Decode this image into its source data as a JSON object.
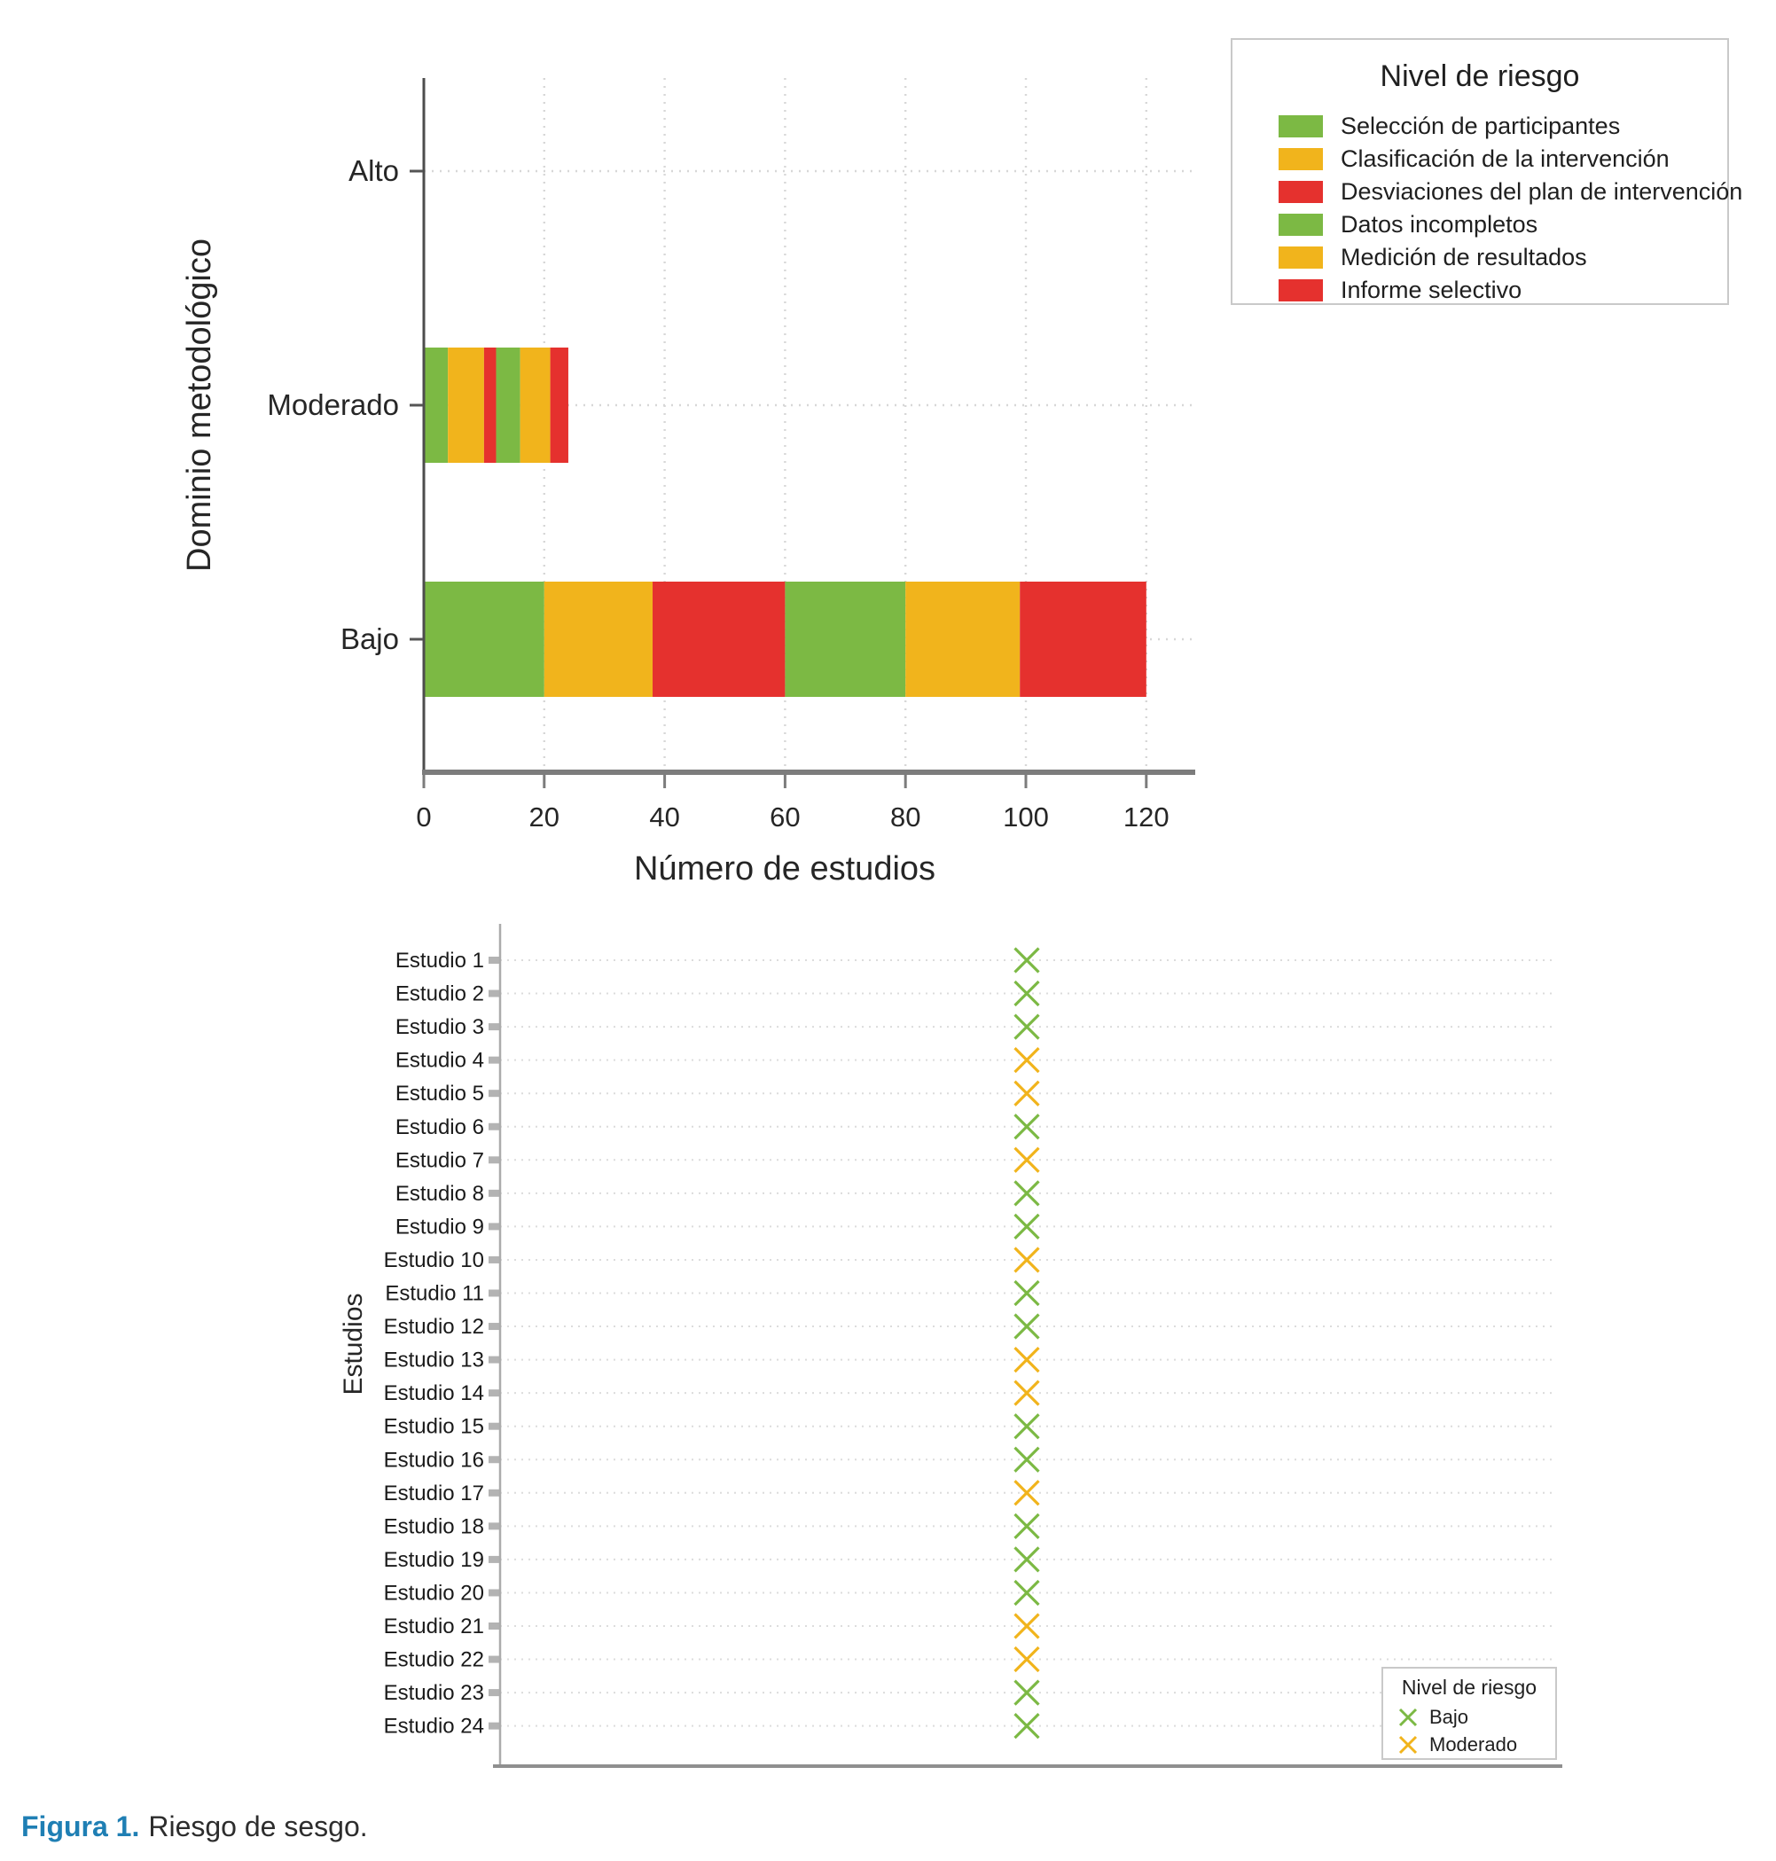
{
  "caption": {
    "label": "Figura 1.",
    "text": "Riesgo de sesgo."
  },
  "palette": {
    "green": "#7CB944",
    "orange": "#F1B41C",
    "red": "#E5312E",
    "caption_blue": "#1F7FB4"
  },
  "chart_data": [
    {
      "type": "bar",
      "stacked": true,
      "orientation": "horizontal",
      "title": "",
      "ylabel": "Dominio metodológico",
      "xlabel": "Número de estudios",
      "categories": [
        "Alto",
        "Moderado",
        "Bajo"
      ],
      "x_ticks": [
        0,
        20,
        40,
        60,
        80,
        100,
        120
      ],
      "xlim": [
        0,
        128
      ],
      "grid": "dotted",
      "legend": {
        "title": "Nivel de riesgo",
        "position": "top-right"
      },
      "series": [
        {
          "name": "Selección de participantes",
          "color_key": "green",
          "values": {
            "Alto": 0,
            "Moderado": 4,
            "Bajo": 20
          }
        },
        {
          "name": "Clasificación de la intervención",
          "color_key": "orange",
          "values": {
            "Alto": 0,
            "Moderado": 6,
            "Bajo": 18
          }
        },
        {
          "name": "Desviaciones del plan de intervención",
          "color_key": "red",
          "values": {
            "Alto": 0,
            "Moderado": 2,
            "Bajo": 22
          }
        },
        {
          "name": "Datos incompletos",
          "color_key": "green",
          "values": {
            "Alto": 0,
            "Moderado": 4,
            "Bajo": 20
          }
        },
        {
          "name": "Medición de resultados",
          "color_key": "orange",
          "values": {
            "Alto": 0,
            "Moderado": 5,
            "Bajo": 19
          }
        },
        {
          "name": "Informe selectivo",
          "color_key": "red",
          "values": {
            "Alto": 0,
            "Moderado": 3,
            "Bajo": 21
          }
        }
      ]
    },
    {
      "type": "scatter",
      "marker": "x",
      "title": "",
      "ylabel": "Estudios",
      "xlabel": "",
      "grid": "dotted",
      "legend": {
        "title": "Nivel de riesgo",
        "position": "bottom-right",
        "entries": [
          {
            "label": "Bajo",
            "color_key": "green"
          },
          {
            "label": "Moderado",
            "color_key": "orange"
          }
        ]
      },
      "risk_levels": {
        "Bajo": "green",
        "Moderado": "orange"
      },
      "studies": [
        {
          "label": "Estudio 1",
          "risk": "Bajo"
        },
        {
          "label": "Estudio 2",
          "risk": "Bajo"
        },
        {
          "label": "Estudio 3",
          "risk": "Bajo"
        },
        {
          "label": "Estudio 4",
          "risk": "Moderado"
        },
        {
          "label": "Estudio 5",
          "risk": "Moderado"
        },
        {
          "label": "Estudio 6",
          "risk": "Bajo"
        },
        {
          "label": "Estudio 7",
          "risk": "Moderado"
        },
        {
          "label": "Estudio 8",
          "risk": "Bajo"
        },
        {
          "label": "Estudio 9",
          "risk": "Bajo"
        },
        {
          "label": "Estudio 10",
          "risk": "Moderado"
        },
        {
          "label": "Estudio 11",
          "risk": "Bajo"
        },
        {
          "label": "Estudio 12",
          "risk": "Bajo"
        },
        {
          "label": "Estudio 13",
          "risk": "Moderado"
        },
        {
          "label": "Estudio 14",
          "risk": "Moderado"
        },
        {
          "label": "Estudio 15",
          "risk": "Bajo"
        },
        {
          "label": "Estudio 16",
          "risk": "Bajo"
        },
        {
          "label": "Estudio 17",
          "risk": "Moderado"
        },
        {
          "label": "Estudio 18",
          "risk": "Bajo"
        },
        {
          "label": "Estudio 19",
          "risk": "Bajo"
        },
        {
          "label": "Estudio 20",
          "risk": "Bajo"
        },
        {
          "label": "Estudio 21",
          "risk": "Moderado"
        },
        {
          "label": "Estudio 22",
          "risk": "Moderado"
        },
        {
          "label": "Estudio 23",
          "risk": "Bajo"
        },
        {
          "label": "Estudio 24",
          "risk": "Bajo"
        }
      ]
    }
  ]
}
